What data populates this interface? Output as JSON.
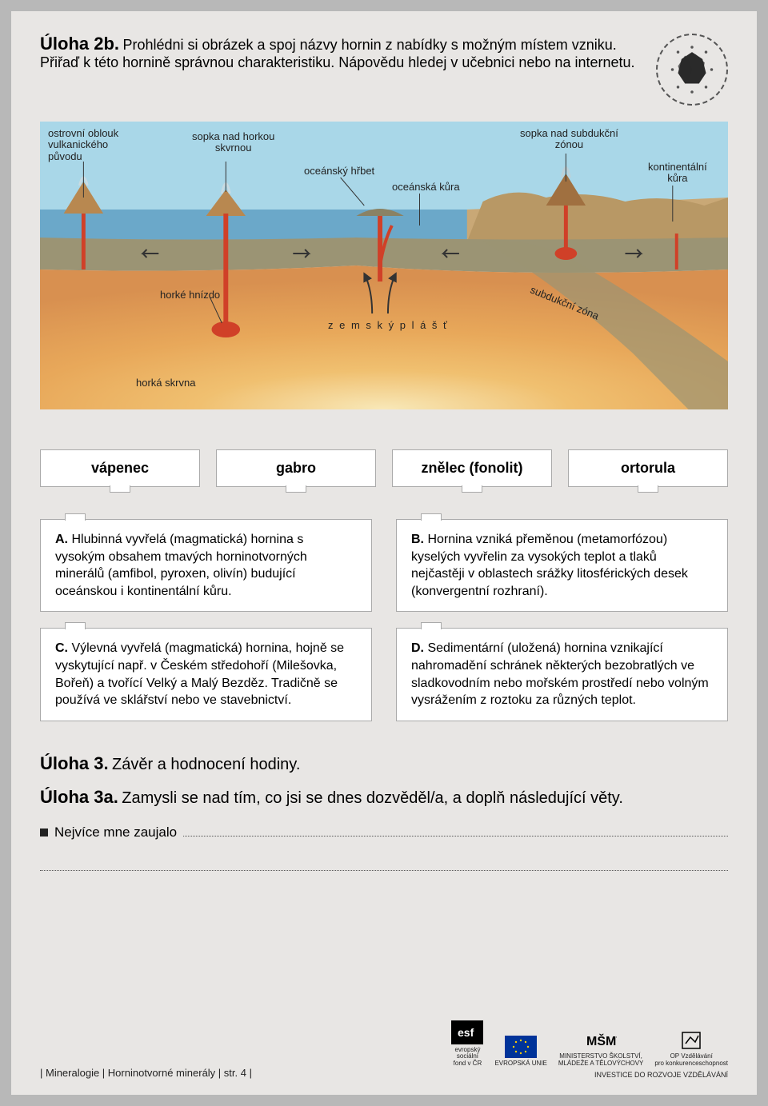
{
  "task2b": {
    "title": "Úloha 2b.",
    "desc": "Prohlédni si obrázek a spoj názvy hornin z nabídky s možným místem vzniku. Přiřaď k této hornině správnou charakteristiku. Nápovědu hledej v učebnici nebo na internetu."
  },
  "diagram": {
    "labels": {
      "island_arc": "ostrovní oblouk\nvulkanického\npůvodu",
      "hotspot_volcano": "sopka nad horkou\nskvrnou",
      "ocean_ridge": "oceánský hřbet",
      "ocean_crust": "oceánská kůra",
      "subduction_volcano": "sopka nad subdukční\nzónou",
      "continental_crust": "kontinentální\nkůra",
      "hot_nest": "horké hnízdo",
      "mantle": "z e m s k ý   p l á š ť",
      "subduction_zone": "subdukční zóna",
      "hot_spot": "horká skrvna"
    },
    "colors": {
      "sky": "#a9d7e8",
      "ocean": "#6ba8c9",
      "land": "#c9a876",
      "crust": "#9b9474",
      "mantle_upper": "#d89050",
      "mantle_mid": "#e8a85a",
      "mantle_hot": "#f0c070",
      "mantle_core": "#f8e8b8",
      "magma": "#d04028"
    }
  },
  "rocks": [
    "vápenec",
    "gabro",
    "znělec (fonolit)",
    "ortorula"
  ],
  "descriptions": [
    {
      "letter": "A.",
      "text": "Hlubinná vyvřelá (magmatická) hornina s vysokým obsahem tmavých horninotvorných minerálů (amfibol, pyroxen, olivín) budující oceánskou i kontinentální kůru."
    },
    {
      "letter": "B.",
      "text": "Hornina vzniká přeměnou (metamorfózou) kyselých vyvřelin za vysokých teplot a tlaků nejčastěji v oblastech srážky litosférických desek (konvergentní rozhraní)."
    },
    {
      "letter": "C.",
      "text": "Výlevná vyvřelá (magmatická) hornina, hojně se vyskytující např. v Českém středohoří (Milešovka, Bořeň) a tvořící Velký a Malý Bezděz. Tradičně se používá ve sklářství nebo ve stavebnictví."
    },
    {
      "letter": "D.",
      "text": "Sedimentární (uložená) hornina vznikající nahromadění schránek některých bezobratlých ve sladkovodním nebo mořském prostředí nebo volným vysrážením z roztoku za různých teplot."
    }
  ],
  "task3": {
    "title": "Úloha 3.",
    "text": "Závěr a hodnocení hodiny."
  },
  "task3a": {
    "title": "Úloha 3a.",
    "text": "Zamysli se nad tím, co jsi se dnes dozvěděl/a, a doplň následující věty.",
    "bullet": "Nejvíce mne zaujalo"
  },
  "footer": {
    "left": "|  Mineralogie  |  Horninotvorné minerály  |  str. 4  |",
    "esf1": "evropský",
    "esf2": "sociální",
    "esf3": "fond v ČR",
    "eu": "EVROPSKÁ UNIE",
    "msmt1": "MINISTERSTVO ŠKOLSTVÍ,",
    "msmt2": "MLÁDEŽE A TĚLOVÝCHOVY",
    "op1": "OP Vzdělávání",
    "op2": "pro konkurenceschopnost",
    "invest": "INVESTICE DO ROZVOJE VZDĚLÁVÁNÍ"
  }
}
